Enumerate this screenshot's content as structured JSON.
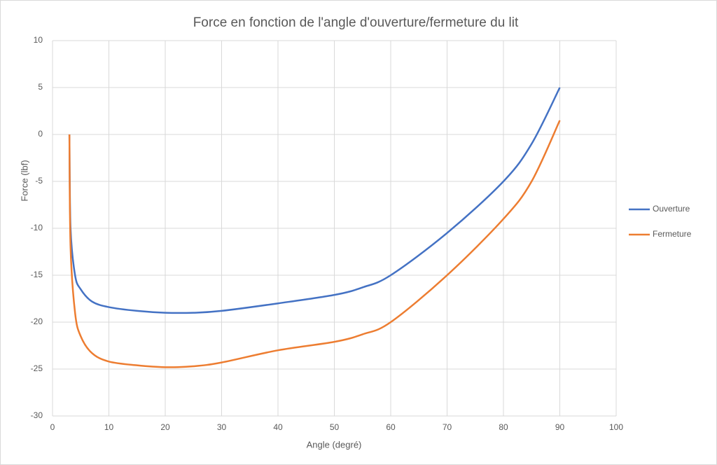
{
  "chart_data": {
    "type": "line",
    "title": "Force en fonction de l'angle d'ouverture/fermeture du lit",
    "x_label": "Angle (degré)",
    "y_label": "Force (lbf)",
    "xlim": [
      0,
      100
    ],
    "xticks": [
      0,
      10,
      20,
      30,
      40,
      50,
      60,
      70,
      80,
      90,
      100
    ],
    "ylim": [
      -30,
      10
    ],
    "yticks": [
      -30,
      -25,
      -20,
      -15,
      -10,
      -5,
      0,
      5,
      10
    ],
    "grid": true,
    "legend": "right",
    "series": [
      {
        "name": "Ouverture",
        "color": "#4472c4",
        "x": [
          3,
          3.2,
          4,
          5,
          7,
          10,
          15,
          20,
          25,
          30,
          40,
          50,
          55,
          60,
          70,
          80,
          85,
          90
        ],
        "values": [
          0,
          -10,
          -15,
          -16.5,
          -17.8,
          -18.4,
          -18.8,
          -19,
          -19,
          -18.8,
          -18,
          -17.1,
          -16.3,
          -15,
          -10.5,
          -5,
          -1,
          5
        ]
      },
      {
        "name": "Fermeture",
        "color": "#ed7d31",
        "x": [
          3,
          3.2,
          4,
          5,
          7,
          10,
          15,
          20,
          25,
          30,
          40,
          50,
          55,
          60,
          70,
          80,
          85,
          90
        ],
        "values": [
          0,
          -12,
          -19,
          -21.5,
          -23.3,
          -24.2,
          -24.6,
          -24.8,
          -24.7,
          -24.3,
          -23,
          -22.1,
          -21.3,
          -20,
          -15,
          -9,
          -5,
          1.5
        ]
      }
    ]
  }
}
